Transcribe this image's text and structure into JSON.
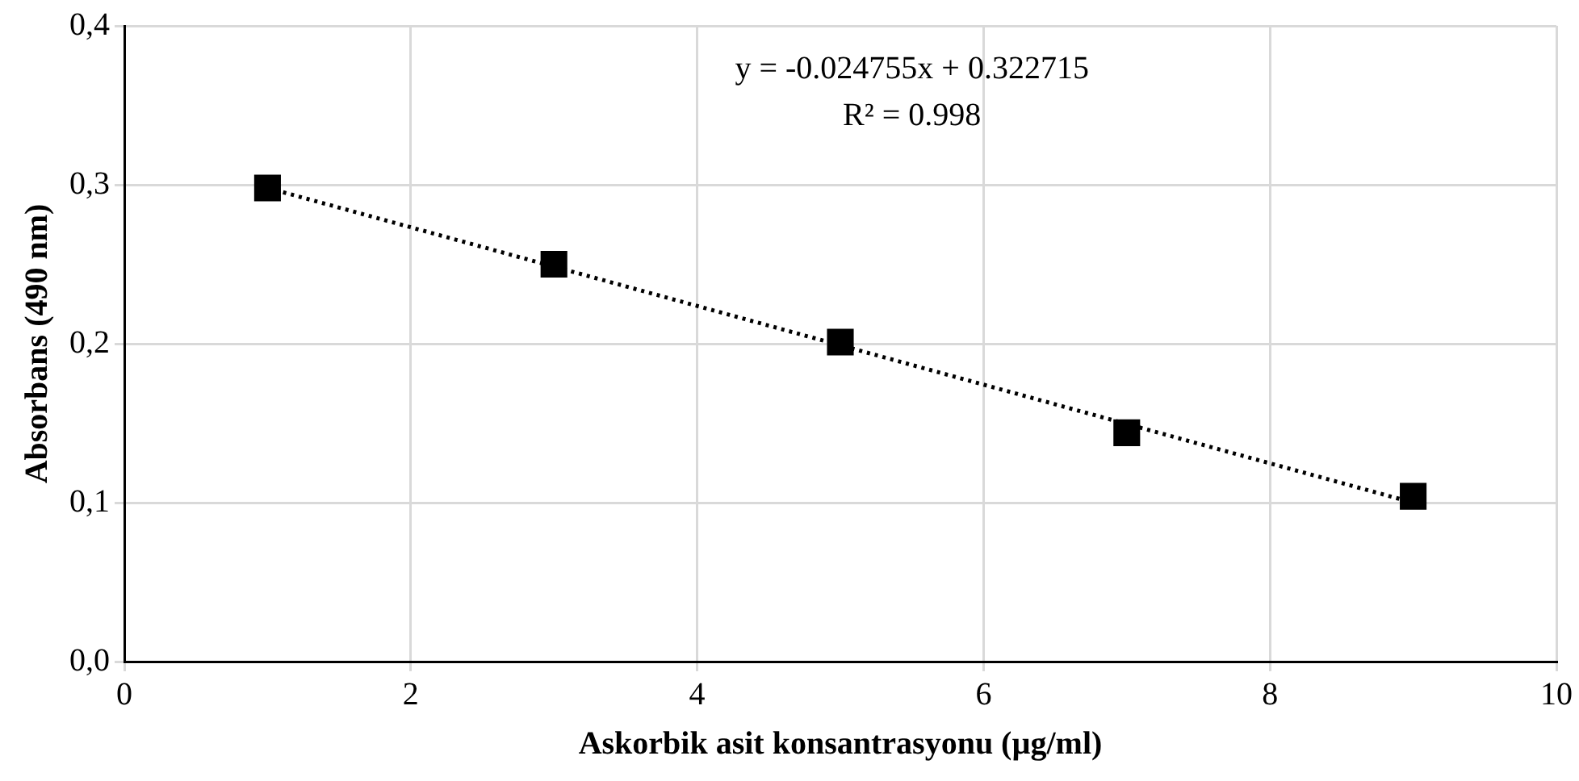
{
  "chart_data": {
    "type": "scatter",
    "xlabel": "Askorbik asit konsantrasyonu (µg/ml)",
    "ylabel": "Absorbans (490 nm)",
    "annotations": [
      "y = -0.024755x + 0.322715",
      "R² = 0.998"
    ],
    "xlim": [
      0,
      10
    ],
    "xticks": [
      0,
      2,
      4,
      6,
      8,
      10
    ],
    "ylim": [
      0,
      0.4
    ],
    "yticks": [
      {
        "value": 0,
        "label": "0,0"
      },
      {
        "value": 0.1,
        "label": "0,1"
      },
      {
        "value": 0.2,
        "label": "0,2"
      },
      {
        "value": 0.3,
        "label": "0,3"
      },
      {
        "value": 0.4,
        "label": "0,4"
      }
    ],
    "grid": true,
    "legend": false,
    "series": [
      {
        "type": "scatter",
        "color": "#000000",
        "marker": "square",
        "x": [
          1,
          3,
          5,
          7,
          9
        ],
        "values": [
          0.298,
          0.25,
          0.201,
          0.144,
          0.104
        ]
      },
      {
        "type": "line",
        "color": "#000000",
        "marker": "none",
        "line_style": "dotted",
        "x": [
          1,
          9
        ],
        "values": [
          0.298,
          0.1
        ]
      }
    ]
  }
}
